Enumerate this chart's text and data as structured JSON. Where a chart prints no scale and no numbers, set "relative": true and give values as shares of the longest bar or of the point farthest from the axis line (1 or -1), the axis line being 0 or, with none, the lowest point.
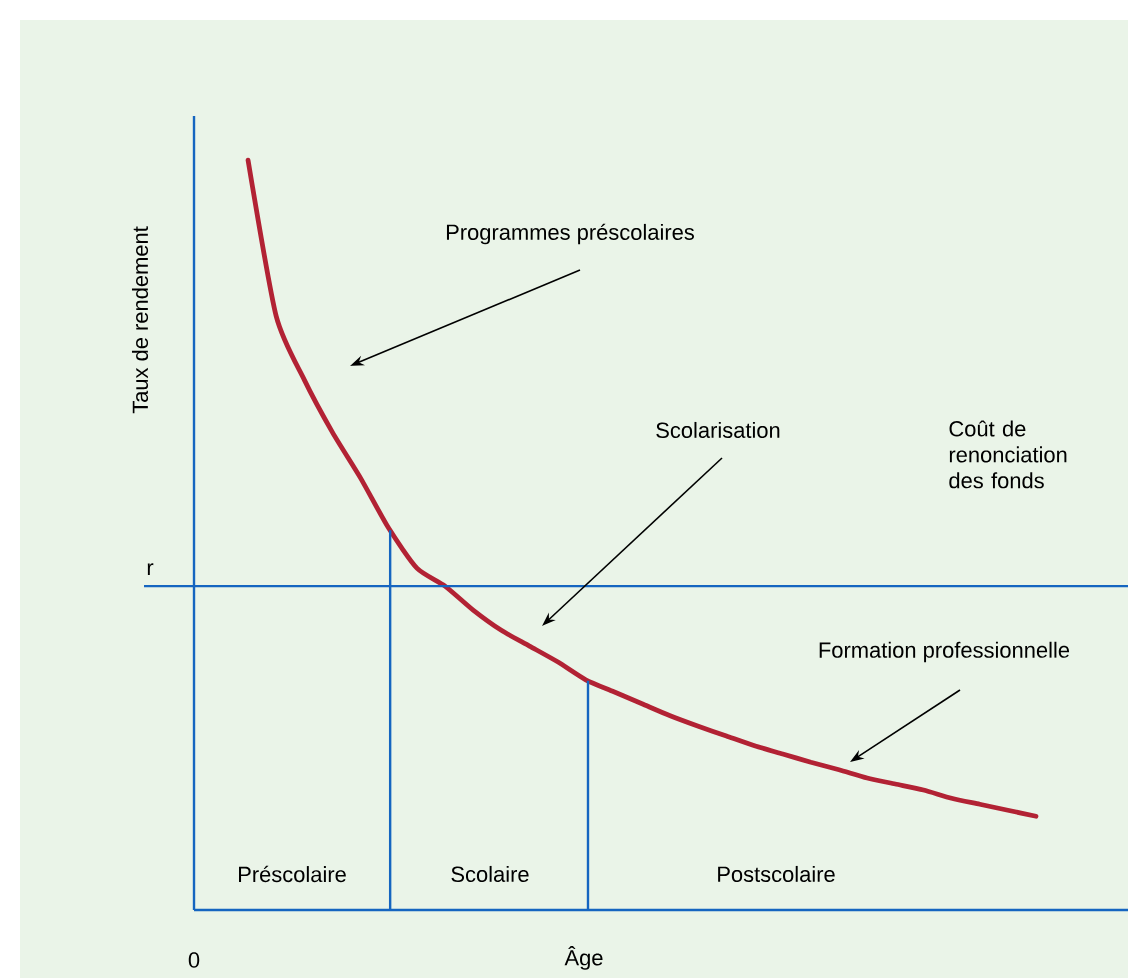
{
  "chart_data": {
    "type": "line",
    "relative": true,
    "xlabel": "Âge",
    "ylabel": "Taux de rendement",
    "categories": [
      null,
      null,
      null,
      null,
      null,
      null,
      null,
      null,
      null,
      null,
      null,
      null,
      null,
      null,
      null,
      null,
      null,
      null,
      null,
      null,
      null,
      null,
      null,
      null,
      null,
      null,
      null,
      null,
      null
    ],
    "series": [
      {
        "color": "#b22234",
        "values": [
          1.0,
          0.792,
          0.707,
          0.637,
          0.576,
          0.509,
          0.456,
          0.432,
          0.4,
          0.373,
          0.352,
          0.331,
          0.307,
          0.291,
          0.275,
          0.259,
          0.245,
          0.232,
          0.219,
          0.208,
          0.197,
          0.187,
          0.176,
          0.168,
          0.16,
          0.149,
          0.141,
          0.133,
          0.125
        ]
      }
    ],
    "ref_lines": [
      {
        "axis": "y",
        "value": 0.432,
        "label": "r",
        "color": "#1565c0"
      }
    ],
    "annotations": [
      "Programmes préscolaires",
      "Scolarisation",
      "Coût de renonciation des fonds",
      "Formation professionnelle",
      "Préscolaire",
      "Scolaire",
      "Postscolaire",
      "0"
    ]
  }
}
